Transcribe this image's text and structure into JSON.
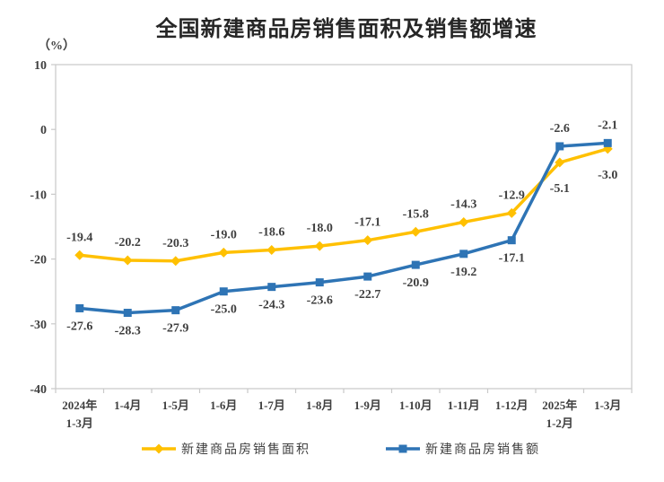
{
  "page": {
    "title": "全国新建商品房销售面积及销售额增速",
    "unit_label": "（%）"
  },
  "chart_data": {
    "type": "line",
    "title": "全国新建商品房销售面积及销售额增速",
    "unit": "（%）",
    "categories": [
      [
        "2024年",
        "1-3月"
      ],
      [
        "1-4月"
      ],
      [
        "1-5月"
      ],
      [
        "1-6月"
      ],
      [
        "1-7月"
      ],
      [
        "1-8月"
      ],
      [
        "1-9月"
      ],
      [
        "1-10月"
      ],
      [
        "1-11月"
      ],
      [
        "1-12月"
      ],
      [
        "2025年",
        "1-2月"
      ],
      [
        "1-3月"
      ]
    ],
    "ylim": [
      -40,
      10
    ],
    "ytick_step": 10,
    "grid": false,
    "legend_position": "bottom",
    "axis_color": "#c9c9c9",
    "text_color": "#404040",
    "series": [
      {
        "name": "新建商品房销售面积",
        "color": "#FFC000",
        "marker": "diamond",
        "values": [
          -19.4,
          -20.2,
          -20.3,
          -19.0,
          -18.6,
          -18.0,
          -17.1,
          -15.8,
          -14.3,
          -12.9,
          -5.1,
          -3.0
        ],
        "label_sides": [
          "above",
          "above",
          "above",
          "above",
          "above",
          "above",
          "above",
          "above",
          "above",
          "above",
          "below",
          "below"
        ]
      },
      {
        "name": "新建商品房销售额",
        "color": "#2E74B5",
        "marker": "square",
        "values": [
          -27.6,
          -28.3,
          -27.9,
          -25.0,
          -24.3,
          -23.6,
          -22.7,
          -20.9,
          -19.2,
          -17.1,
          -2.6,
          -2.1
        ],
        "label_sides": [
          "below",
          "below",
          "below",
          "below",
          "below",
          "below",
          "below",
          "below",
          "below",
          "below",
          "above",
          "above"
        ]
      }
    ]
  }
}
